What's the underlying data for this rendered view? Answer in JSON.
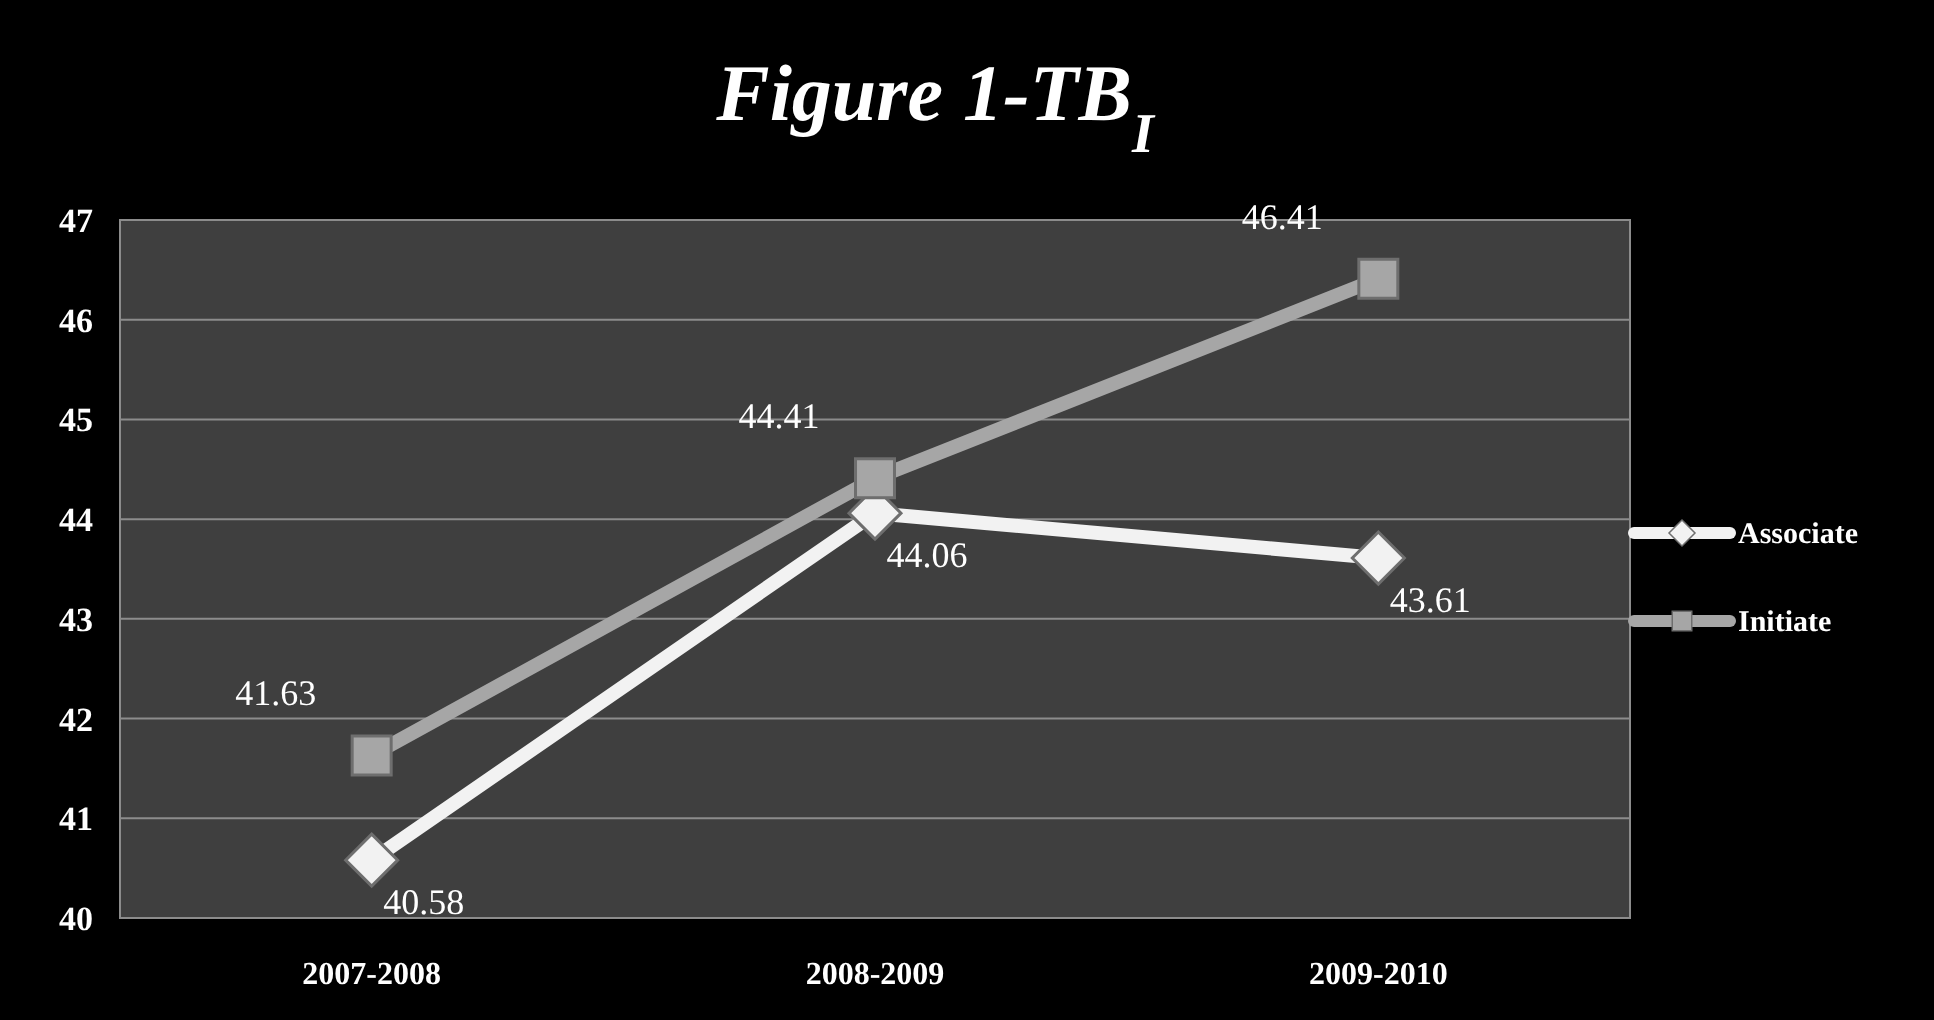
{
  "chart_data": {
    "type": "line",
    "title": "Figure 1-TB$_{I}$",
    "categories": [
      "2007-2008",
      "2008-2009",
      "2009-2010"
    ],
    "series": [
      {
        "name": "Associate",
        "color": "#f2f2f2",
        "values": [
          40.58,
          44.06,
          43.61
        ],
        "marker": "diamond"
      },
      {
        "name": "Initiate",
        "color": "#a6a6a6",
        "values": [
          41.63,
          44.41,
          46.41
        ],
        "marker": "square"
      }
    ],
    "ylim": [
      40,
      47
    ],
    "yticks": [
      40,
      41,
      42,
      43,
      44,
      45,
      46,
      47
    ],
    "grid": "y",
    "legend": "right",
    "data_labels": true,
    "line_style": "solid"
  }
}
